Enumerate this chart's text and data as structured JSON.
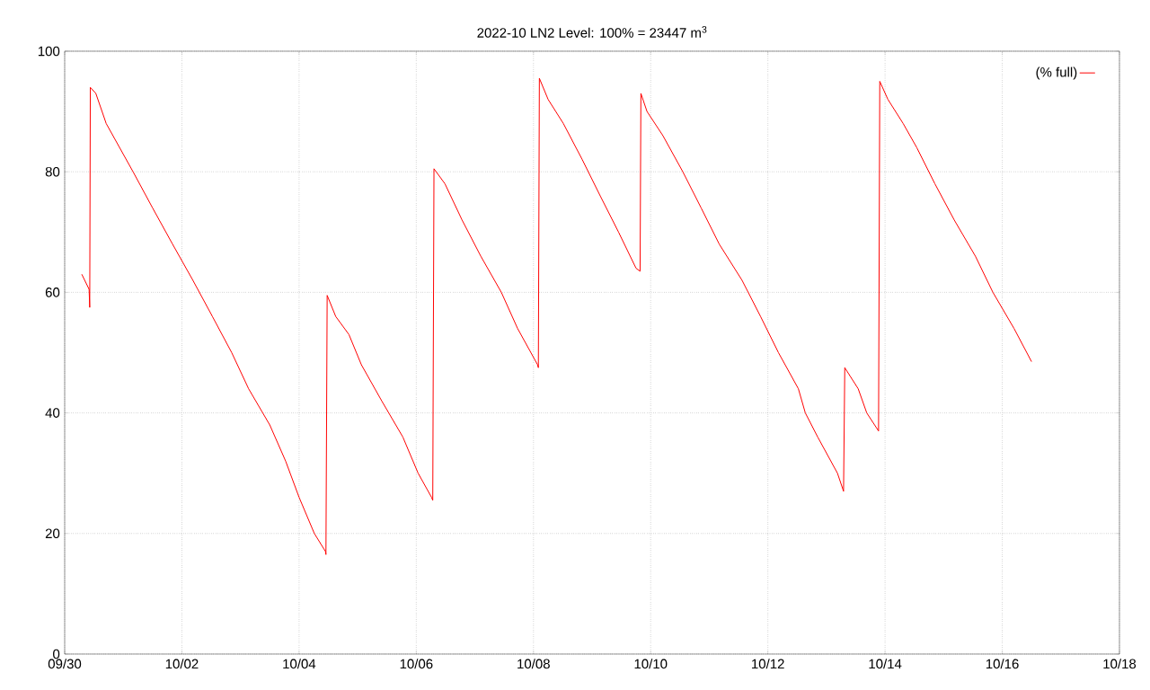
{
  "chart_data": {
    "type": "line",
    "title": "2022-10 LN2 Level: 100% = 23447 m$^{3}$",
    "x": [
      "2022-09-30T07:00",
      "2022-09-30T10:00",
      "2022-09-30T10:15",
      "2022-09-30T10:30",
      "2022-09-30T12:45",
      "2022-09-30T17:00",
      "2022-10-01T04:00",
      "2022-10-01T12:00",
      "2022-10-01T20:10",
      "2022-10-02T04:30",
      "2022-10-02T12:30",
      "2022-10-02T20:24",
      "2022-10-03T03:20",
      "2022-10-03T12:00",
      "2022-10-03T18:30",
      "2022-10-04T00:00",
      "2022-10-04T06:15",
      "2022-10-04T10:50",
      "2022-10-04T11:00",
      "2022-10-04T11:30",
      "2022-10-04T15:00",
      "2022-10-04T20:25",
      "2022-10-05T01:30",
      "2022-10-05T09:50",
      "2022-10-05T18:30",
      "2022-10-06T00:45",
      "2022-10-06T06:15",
      "2022-10-06T06:45",
      "2022-10-06T07:15",
      "2022-10-06T11:45",
      "2022-10-06T18:45",
      "2022-10-07T02:25",
      "2022-10-07T10:50",
      "2022-10-07T17:30",
      "2022-10-08T01:40",
      "2022-10-08T02:00",
      "2022-10-08T02:25",
      "2022-10-08T06:00",
      "2022-10-08T12:15",
      "2022-10-08T20:00",
      "2022-10-09T03:20",
      "2022-10-09T10:50",
      "2022-10-09T18:00",
      "2022-10-09T19:40",
      "2022-10-09T20:00",
      "2022-10-09T22:30",
      "2022-10-10T05:00",
      "2022-10-10T13:10",
      "2022-10-10T20:40",
      "2022-10-11T04:05",
      "2022-10-11T13:25",
      "2022-10-11T21:00",
      "2022-10-12T04:20",
      "2022-10-12T12:30",
      "2022-10-12T15:20",
      "2022-10-12T20:25",
      "2022-10-13T04:30",
      "2022-10-13T07:00",
      "2022-10-13T07:30",
      "2022-10-13T13:00",
      "2022-10-13T16:30",
      "2022-10-13T21:20",
      "2022-10-13T21:50",
      "2022-10-14T01:10",
      "2022-10-14T07:25",
      "2022-10-14T13:00",
      "2022-10-14T20:25",
      "2022-10-15T04:20",
      "2022-10-15T13:00",
      "2022-10-15T20:10",
      "2022-10-16T04:50",
      "2022-10-16T12:00"
    ],
    "series": [
      {
        "name": "(% full)",
        "color": "#ff0000",
        "values": [
          63,
          60.5,
          57.5,
          94,
          93,
          88,
          80,
          74,
          68,
          62,
          56,
          50,
          44,
          38,
          32,
          26,
          20,
          17,
          16.5,
          59.5,
          56,
          53,
          48,
          42,
          36,
          30,
          26,
          25.5,
          80.5,
          78,
          72,
          66,
          60,
          54,
          48,
          47.5,
          95.5,
          92,
          88,
          82,
          76,
          70,
          64,
          63.5,
          93,
          90,
          86,
          80,
          74,
          68,
          62,
          56,
          50,
          44,
          40,
          36,
          30,
          27,
          47.5,
          44,
          40,
          37,
          95,
          92,
          88,
          84,
          78,
          72,
          66,
          60,
          54,
          48.5
        ]
      }
    ],
    "xlim": [
      "2022-09-30",
      "2022-10-18"
    ],
    "xticks": [
      {
        "value": "2022-09-30",
        "label": "09/30"
      },
      {
        "value": "2022-10-02",
        "label": "10/02"
      },
      {
        "value": "2022-10-04",
        "label": "10/04"
      },
      {
        "value": "2022-10-06",
        "label": "10/06"
      },
      {
        "value": "2022-10-08",
        "label": "10/08"
      },
      {
        "value": "2022-10-10",
        "label": "10/10"
      },
      {
        "value": "2022-10-12",
        "label": "10/12"
      },
      {
        "value": "2022-10-14",
        "label": "10/14"
      },
      {
        "value": "2022-10-16",
        "label": "10/16"
      },
      {
        "value": "2022-10-18",
        "label": "10/18"
      }
    ],
    "ylim": [
      0,
      100
    ],
    "yticks": [
      0,
      20,
      40,
      60,
      80,
      100
    ],
    "grid": true,
    "legend": "top right",
    "marker": "none",
    "line_style": "solid"
  }
}
